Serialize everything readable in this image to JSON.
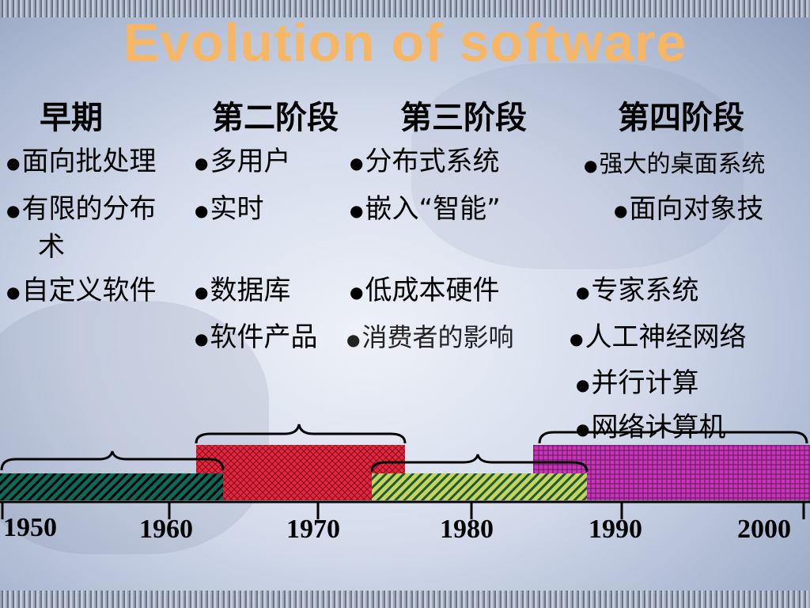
{
  "slide": {
    "title": "Evolution  of  software",
    "columns": [
      {
        "header": "早期",
        "items": [
          "面向批处理",
          "有限的分布",
          "术",
          "自定义软件"
        ]
      },
      {
        "header": "第二阶段",
        "items": [
          "多用户",
          "实时",
          "数据库",
          "软件产品"
        ]
      },
      {
        "header": "第三阶段",
        "items": [
          "分布式系统",
          "嵌入“智能”",
          "低成本硬件",
          "消费者的影响"
        ]
      },
      {
        "header": "第四阶段",
        "items": [
          "强大的桌面系统",
          "面向对象技",
          "专家系统",
          "人工神经网络",
          "并行计算",
          "网络计算机"
        ]
      }
    ],
    "timeline": {
      "years": [
        "1950",
        "1960",
        "1970",
        "1980",
        "1990",
        "2000"
      ],
      "eras": [
        {
          "label": "早期",
          "start": 1950,
          "end": 1963,
          "color": "#0b6a5a"
        },
        {
          "label": "第二阶段",
          "start": 1963,
          "end": 1975,
          "color": "#e8253f"
        },
        {
          "label": "第三阶段",
          "start": 1975,
          "end": 1987,
          "color": "#c8d35a"
        },
        {
          "label": "第四阶段",
          "start": 1985,
          "end": 2000,
          "color": "#c437b6"
        }
      ]
    }
  }
}
